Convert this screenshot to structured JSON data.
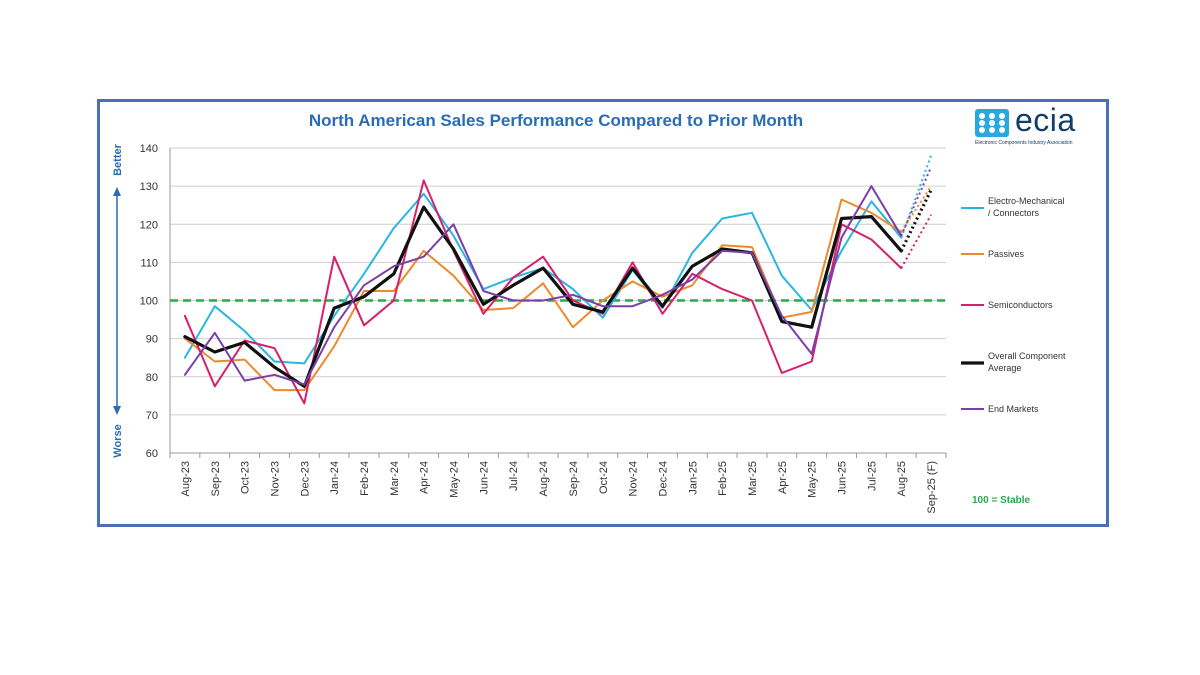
{
  "chart_data": {
    "type": "line",
    "title": "North American Sales Performance Compared to Prior Month",
    "x": [
      "Aug-23",
      "Sep-23",
      "Oct-23",
      "Nov-23",
      "Dec-23",
      "Jan-24",
      "Feb-24",
      "Mar-24",
      "Apr-24",
      "May-24",
      "Jun-24",
      "Jul-24",
      "Aug-24",
      "Sep-24",
      "Oct-24",
      "Nov-24",
      "Dec-24",
      "Jan-25",
      "Feb-25",
      "Mar-25",
      "Apr-25",
      "May-25",
      "Jun-25",
      "Jul-25",
      "Aug-25",
      "Sep-25 (F)"
    ],
    "ylim": [
      60,
      140
    ],
    "yticks": [
      60,
      70,
      80,
      90,
      100,
      110,
      120,
      130,
      140
    ],
    "grid": true,
    "legend_position": "right",
    "reference_line": {
      "value": 100,
      "label": "100 = Stable",
      "color": "#2aa84a"
    },
    "axis_annotations": {
      "top": "Better",
      "bottom": "Worse"
    },
    "forecast_style": "dotted",
    "series": [
      {
        "name": "Electro-Mechanical / Connectors",
        "color": "#29b6e0",
        "values": [
          85,
          98.5,
          92,
          84,
          83.5,
          96,
          107,
          119,
          128,
          117,
          103,
          106,
          108.5,
          103,
          95.5,
          108,
          98,
          112.5,
          121.5,
          123,
          106.5,
          97.5,
          113,
          126,
          116.5,
          138
        ]
      },
      {
        "name": "Passives",
        "color": "#ee8a2e",
        "values": [
          90,
          84,
          84.5,
          76.5,
          76.5,
          88,
          102.5,
          102.5,
          113,
          106.5,
          97.5,
          98,
          104.5,
          93,
          100,
          105,
          101,
          104,
          114.5,
          114,
          95.5,
          97,
          126.5,
          123,
          118,
          130
        ]
      },
      {
        "name": "Semiconductors",
        "color": "#d81f6a",
        "values": [
          96,
          77.5,
          89.5,
          87.5,
          73,
          111.5,
          93.5,
          100,
          131.5,
          113,
          96.5,
          106,
          111.5,
          100,
          96.5,
          110,
          96.5,
          107,
          103,
          100,
          81,
          84,
          120,
          116,
          108.5,
          122.5
        ]
      },
      {
        "name": "Overall Component Average",
        "color": "#111111",
        "values": [
          90.5,
          86.5,
          89,
          82.5,
          77.5,
          98,
          101,
          107,
          124.5,
          113.5,
          99,
          104,
          108.5,
          99,
          97,
          108.5,
          98.5,
          109,
          113.5,
          112.5,
          94.5,
          93,
          121.5,
          122,
          113,
          129
        ]
      },
      {
        "name": "End Markets",
        "color": "#7a3fa8",
        "values": [
          80.5,
          91.5,
          79,
          80.5,
          78,
          93,
          104,
          109,
          111.5,
          120,
          102.5,
          100,
          100,
          101.5,
          98.5,
          98.5,
          101.5,
          105.5,
          113,
          112.5,
          96,
          86,
          116.5,
          130,
          117,
          135
        ]
      }
    ]
  },
  "logo": {
    "word": "ecia",
    "subtitle": "Electronic Components Industry Association"
  }
}
